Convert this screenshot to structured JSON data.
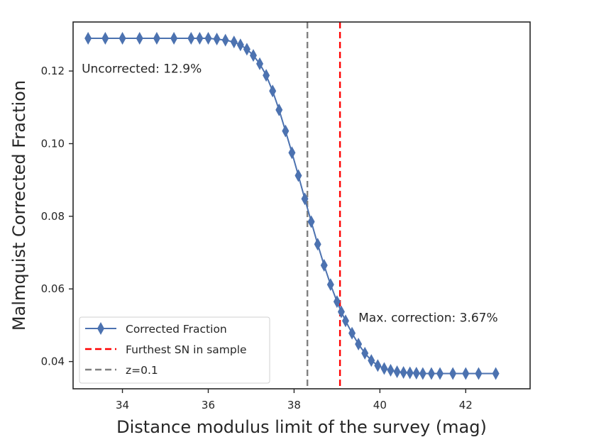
{
  "chart_data": {
    "type": "line",
    "title": "",
    "xlabel": "Distance modulus limit of the survey (mag)",
    "ylabel": "Malmquist Corrected Fraction",
    "xlim": [
      32.85,
      43.5
    ],
    "ylim": [
      0.0325,
      0.1335
    ],
    "xticks": [
      34,
      36,
      38,
      40,
      42
    ],
    "xtick_labels": [
      "34",
      "36",
      "38",
      "40",
      "42"
    ],
    "yticks": [
      0.04,
      0.06,
      0.08,
      0.1,
      0.12
    ],
    "ytick_labels": [
      "0.04",
      "0.06",
      "0.08",
      "0.10",
      "0.12"
    ],
    "grid": false,
    "legend_position": "lower-left",
    "series": [
      {
        "name": "Corrected Fraction",
        "color": "#4c72b0",
        "marker": "thin_diamond",
        "x": [
          33.2,
          33.6,
          34.0,
          34.4,
          34.8,
          35.2,
          35.6,
          35.8,
          36.0,
          36.2,
          36.4,
          36.6,
          36.75,
          36.9,
          37.05,
          37.2,
          37.35,
          37.5,
          37.65,
          37.8,
          37.95,
          38.1,
          38.25,
          38.4,
          38.55,
          38.7,
          38.85,
          39.0,
          39.1,
          39.2,
          39.35,
          39.5,
          39.65,
          39.8,
          39.95,
          40.1,
          40.25,
          40.4,
          40.55,
          40.7,
          40.85,
          41.0,
          41.2,
          41.4,
          41.7,
          42.0,
          42.3,
          42.7
        ],
        "y": [
          0.129,
          0.129,
          0.129,
          0.129,
          0.129,
          0.129,
          0.129,
          0.129,
          0.129,
          0.1288,
          0.1285,
          0.128,
          0.1272,
          0.126,
          0.1243,
          0.122,
          0.1188,
          0.1145,
          0.1093,
          0.1035,
          0.0975,
          0.0912,
          0.0848,
          0.0785,
          0.0723,
          0.0665,
          0.0612,
          0.0565,
          0.0537,
          0.0512,
          0.0478,
          0.0448,
          0.0423,
          0.0403,
          0.0389,
          0.0381,
          0.0376,
          0.0372,
          0.037,
          0.0369,
          0.0368,
          0.0367,
          0.0367,
          0.0367,
          0.0367,
          0.0367,
          0.0367,
          0.0367
        ]
      },
      {
        "name": "Furthest SN in sample",
        "color": "#ff0000",
        "style": "dashed-vertical",
        "x_value": 39.07
      },
      {
        "name": "z=0.1",
        "color": "#808080",
        "style": "dashed-vertical",
        "x_value": 38.31
      }
    ],
    "annotations": [
      {
        "text": "Uncorrected: 12.9%",
        "x": 33.05,
        "y": 0.1195
      },
      {
        "text": "Max. correction: 3.67%",
        "x": 39.5,
        "y": 0.051
      }
    ]
  }
}
